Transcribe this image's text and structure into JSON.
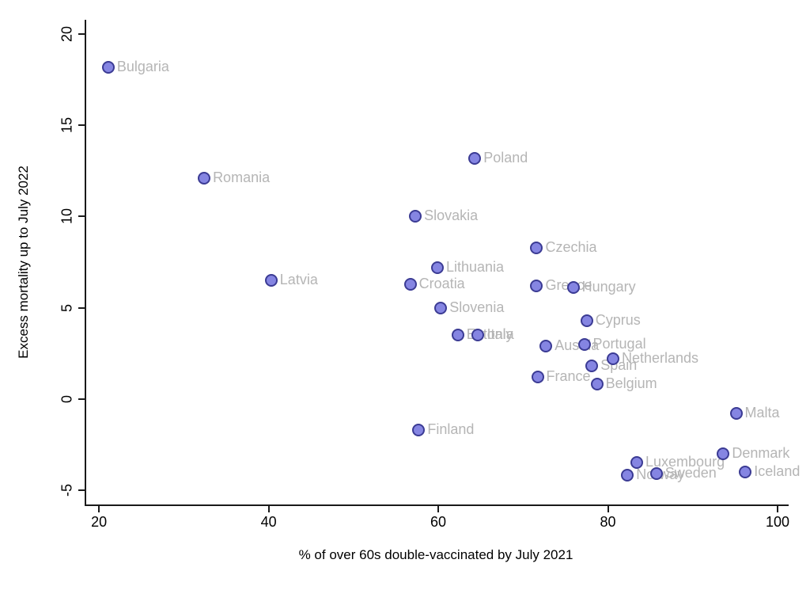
{
  "chart_data": {
    "type": "scatter",
    "title": "",
    "xlabel": "% of over 60s double-vaccinated by July 2021",
    "ylabel": "Excess mortality up to July 2022",
    "xlim": [
      18.5,
      101.3
    ],
    "ylim": [
      -5.8,
      20.8
    ],
    "x_ticks": [
      20,
      40,
      60,
      80,
      100
    ],
    "y_ticks": [
      -5,
      0,
      5,
      10,
      15,
      20
    ],
    "grid": false,
    "legend": false,
    "colors": {
      "marker_fill": "#8585e2",
      "marker_stroke": "#3b3b94",
      "point_label": "#b5b5b5",
      "axis": "#1a1a1a"
    },
    "points": [
      {
        "label": "Bulgaria",
        "x": 21.1,
        "y": 18.2
      },
      {
        "label": "Romania",
        "x": 32.4,
        "y": 12.1
      },
      {
        "label": "Poland",
        "x": 64.3,
        "y": 13.2
      },
      {
        "label": "Slovakia",
        "x": 57.3,
        "y": 10.0
      },
      {
        "label": "Czechia",
        "x": 71.6,
        "y": 8.3
      },
      {
        "label": "Lithuania",
        "x": 59.9,
        "y": 7.2
      },
      {
        "label": "Latvia",
        "x": 40.3,
        "y": 6.5
      },
      {
        "label": "Croatia",
        "x": 56.7,
        "y": 6.3
      },
      {
        "label": "Greece",
        "x": 71.6,
        "y": 6.2
      },
      {
        "label": "Hungary",
        "x": 75.9,
        "y": 6.1
      },
      {
        "label": "Slovenia",
        "x": 60.3,
        "y": 5.0
      },
      {
        "label": "Cyprus",
        "x": 77.5,
        "y": 4.3
      },
      {
        "label": "Estonia",
        "x": 62.3,
        "y": 3.5
      },
      {
        "label": "Italy",
        "x": 64.7,
        "y": 3.5
      },
      {
        "label": "Austria",
        "x": 72.7,
        "y": 2.9
      },
      {
        "label": "Portugal",
        "x": 77.2,
        "y": 3.0
      },
      {
        "label": "Netherlands",
        "x": 80.6,
        "y": 2.2
      },
      {
        "label": "Spain",
        "x": 78.1,
        "y": 1.8
      },
      {
        "label": "France",
        "x": 71.7,
        "y": 1.2
      },
      {
        "label": "Belgium",
        "x": 78.7,
        "y": 0.8
      },
      {
        "label": "Malta",
        "x": 95.1,
        "y": -0.8
      },
      {
        "label": "Finland",
        "x": 57.7,
        "y": -1.7
      },
      {
        "label": "Denmark",
        "x": 93.6,
        "y": -3.0
      },
      {
        "label": "Luxembourg",
        "x": 83.4,
        "y": -3.5
      },
      {
        "label": "Norway",
        "x": 82.3,
        "y": -4.2
      },
      {
        "label": "Sweden",
        "x": 85.7,
        "y": -4.1
      },
      {
        "label": "Iceland",
        "x": 96.2,
        "y": -4.0
      }
    ]
  }
}
